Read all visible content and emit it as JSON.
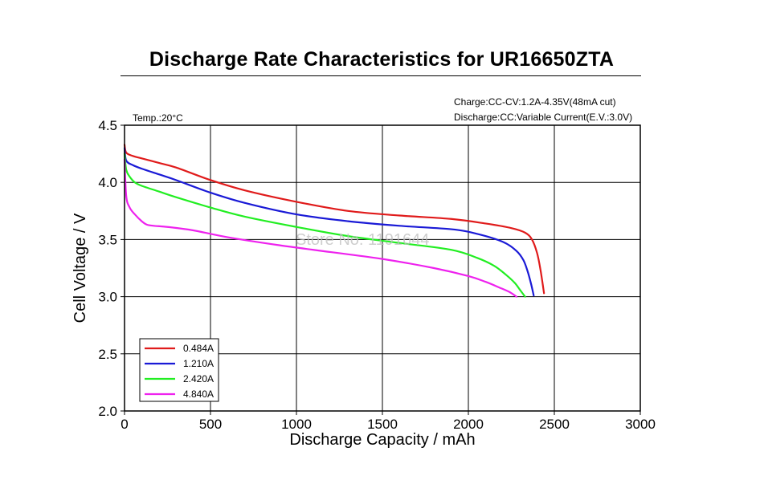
{
  "chart_data": {
    "type": "line",
    "title": "Discharge Rate Characteristics for UR16650ZTA",
    "annotations": {
      "temperature": "Temp.:20°C",
      "charge": "Charge:CC-CV:1.2A-4.35V(48mA cut)",
      "discharge": "Discharge:CC:Variable Current(E.V.:3.0V)",
      "watermark": "Store No. 1191644"
    },
    "xlabel": "Discharge Capacity / mAh",
    "ylabel": "Cell Voltage / V",
    "xlim": [
      0,
      3000
    ],
    "ylim": [
      2.0,
      4.5
    ],
    "x_ticks": [
      0,
      500,
      1000,
      1500,
      2000,
      2500,
      3000
    ],
    "x_tick_labels": [
      "0",
      "500",
      "1000",
      "1500",
      "2000",
      "2500",
      "3000"
    ],
    "y_ticks": [
      2.0,
      2.5,
      3.0,
      3.5,
      4.0,
      4.5
    ],
    "y_tick_labels": [
      "2.0",
      "2.5",
      "3.0",
      "3.5",
      "4.0",
      "4.5"
    ],
    "grid": true,
    "legend_position": "bottom-left",
    "series": [
      {
        "name": "0.484A",
        "color": "#e01b1b",
        "x": [
          0,
          10,
          50,
          100,
          200,
          300,
          500,
          700,
          1000,
          1300,
          1600,
          1900,
          2100,
          2250,
          2330,
          2370,
          2400,
          2420,
          2440
        ],
        "y": [
          4.33,
          4.26,
          4.23,
          4.21,
          4.17,
          4.13,
          4.02,
          3.93,
          3.83,
          3.75,
          3.71,
          3.68,
          3.64,
          3.6,
          3.56,
          3.5,
          3.38,
          3.23,
          3.03
        ]
      },
      {
        "name": "1.210A",
        "color": "#1a1ad6",
        "x": [
          0,
          10,
          50,
          100,
          200,
          300,
          500,
          700,
          1000,
          1300,
          1600,
          1900,
          2050,
          2200,
          2280,
          2320,
          2345,
          2365,
          2380
        ],
        "y": [
          4.3,
          4.19,
          4.15,
          4.12,
          4.07,
          4.02,
          3.91,
          3.82,
          3.72,
          3.66,
          3.62,
          3.59,
          3.55,
          3.48,
          3.4,
          3.32,
          3.22,
          3.11,
          3.01
        ]
      },
      {
        "name": "2.420A",
        "color": "#22ee22",
        "x": [
          0,
          10,
          30,
          60,
          100,
          200,
          300,
          500,
          700,
          1000,
          1300,
          1600,
          1900,
          2050,
          2150,
          2220,
          2270,
          2300,
          2330
        ],
        "y": [
          4.25,
          4.11,
          4.05,
          4.0,
          3.97,
          3.92,
          3.87,
          3.78,
          3.7,
          3.61,
          3.53,
          3.47,
          3.41,
          3.34,
          3.27,
          3.19,
          3.12,
          3.06,
          3.0
        ]
      },
      {
        "name": "4.840A",
        "color": "#ee22ee",
        "x": [
          0,
          10,
          30,
          60,
          100,
          130,
          170,
          250,
          400,
          600,
          900,
          1200,
          1500,
          1800,
          2000,
          2100,
          2180,
          2240,
          2280
        ],
        "y": [
          4.2,
          3.88,
          3.78,
          3.72,
          3.66,
          3.63,
          3.62,
          3.61,
          3.58,
          3.52,
          3.45,
          3.39,
          3.33,
          3.25,
          3.18,
          3.13,
          3.08,
          3.04,
          3.0
        ]
      }
    ]
  }
}
